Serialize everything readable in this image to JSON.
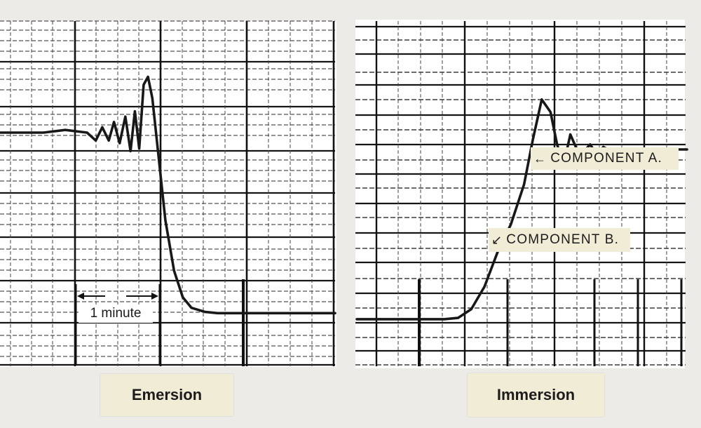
{
  "chart_data": [
    {
      "type": "line",
      "title": "Emersion",
      "xlabel": "",
      "ylabel": "",
      "grid": true,
      "annotations": [
        {
          "text": "1 minute",
          "kind": "time-scale-bracket"
        }
      ],
      "series": [
        {
          "x": [
            0,
            0.5,
            1,
            1.5,
            2,
            2.2,
            2.35,
            2.5,
            2.62,
            2.75,
            2.88,
            3,
            3.1,
            3.2,
            3.3,
            3.4,
            3.5,
            3.65,
            3.8,
            4.0,
            4.2,
            4.4,
            4.7,
            5.0,
            5.5,
            6,
            6.5,
            7,
            7.7
          ],
          "y": [
            6.8,
            6.8,
            6.8,
            6.9,
            6.8,
            6.5,
            7.0,
            6.5,
            7.2,
            6.4,
            7.4,
            6.1,
            7.6,
            6.2,
            8.6,
            8.9,
            8.1,
            5.8,
            3.5,
            1.6,
            0.6,
            0.2,
            0.05,
            0,
            0,
            0,
            0,
            0,
            0
          ]
        }
      ],
      "xlim": [
        0,
        7.7
      ],
      "ylim": [
        -2,
        11
      ]
    },
    {
      "type": "line",
      "title": "Immersion",
      "xlabel": "",
      "ylabel": "",
      "grid": true,
      "annotations": [
        {
          "text": "COMPONENT A.",
          "arrow": "left"
        },
        {
          "text": "COMPONENT B.",
          "arrow": "left"
        }
      ],
      "series": [
        {
          "x": [
            0,
            0.5,
            1,
            1.5,
            2,
            2.3,
            2.6,
            2.9,
            3.2,
            3.5,
            3.8,
            4.0,
            4.2,
            4.4,
            4.55,
            4.7,
            4.85,
            5.0,
            5.15,
            5.3,
            5.45,
            5.6,
            5.8,
            6.0,
            6.3,
            6.6,
            6.9,
            7.2,
            7.5
          ],
          "y": [
            0,
            0,
            0,
            0,
            0,
            0.05,
            0.4,
            1.3,
            2.7,
            3.8,
            5.4,
            7.2,
            8.8,
            8.3,
            7.0,
            6.2,
            7.4,
            6.8,
            6.7,
            7.0,
            6.6,
            6.9,
            6.7,
            6.8,
            6.8,
            6.8,
            6.8,
            6.8,
            6.8
          ]
        }
      ],
      "xlim": [
        0,
        7.5
      ],
      "ylim": [
        -2,
        12
      ]
    }
  ]
}
